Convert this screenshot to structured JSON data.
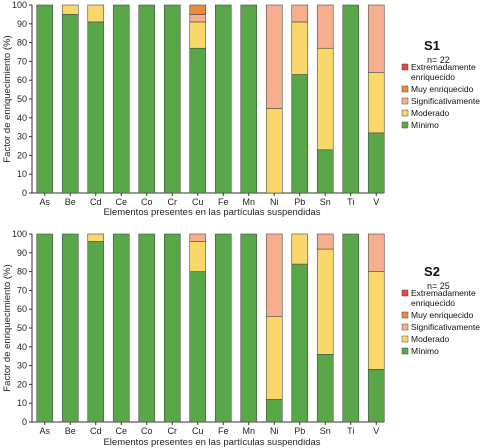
{
  "chart_data": [
    {
      "type": "bar",
      "stacked": true,
      "panel_title": "S1",
      "n_label": "n= 22",
      "ylabel": "Factor de enriquecimiento (%)",
      "xlabel": "Elementos presentes en las partículas suspendidas",
      "ylim": [
        0,
        100
      ],
      "yticks": [
        0,
        10,
        20,
        30,
        40,
        50,
        60,
        70,
        80,
        90,
        100
      ],
      "categories": [
        "As",
        "Be",
        "Cd",
        "Ce",
        "Co",
        "Cr",
        "Cu",
        "Fe",
        "Mn",
        "Ni",
        "Pb",
        "Sn",
        "Ti",
        "V"
      ],
      "series": [
        {
          "name": "Mínimo",
          "color": "#5aa74a",
          "values": [
            100,
            95,
            91,
            100,
            100,
            100,
            77,
            100,
            100,
            0,
            63,
            23,
            100,
            32
          ]
        },
        {
          "name": "Moderado",
          "color": "#f9d76a",
          "values": [
            0,
            5,
            9,
            0,
            0,
            0,
            14,
            0,
            0,
            45,
            28,
            54,
            0,
            32
          ]
        },
        {
          "name": "Significativamente",
          "color": "#f7ae8e",
          "values": [
            0,
            0,
            0,
            0,
            0,
            0,
            4,
            0,
            0,
            55,
            9,
            23,
            0,
            36
          ]
        },
        {
          "name": "Muy enriquecido",
          "color": "#ee8a3c",
          "values": [
            0,
            0,
            0,
            0,
            0,
            0,
            5,
            0,
            0,
            0,
            0,
            0,
            0,
            0
          ]
        },
        {
          "name": "Extremadamente enriquecido",
          "color": "#e8453c",
          "values": [
            0,
            0,
            0,
            0,
            0,
            0,
            0,
            0,
            0,
            0,
            0,
            0,
            0,
            0
          ]
        }
      ],
      "legend_position": "right",
      "grid": false
    },
    {
      "type": "bar",
      "stacked": true,
      "panel_title": "S2",
      "n_label": "n= 25",
      "ylabel": "Factor de enriquecimiento (%)",
      "xlabel": "Elementos presentes en las partículas suspendidas",
      "ylim": [
        0,
        100
      ],
      "yticks": [
        0,
        10,
        20,
        30,
        40,
        50,
        60,
        70,
        80,
        90,
        100
      ],
      "categories": [
        "As",
        "Be",
        "Cd",
        "Ce",
        "Co",
        "Cr",
        "Cu",
        "Fe",
        "Mn",
        "Ni",
        "Pb",
        "Sn",
        "Ti",
        "V"
      ],
      "series": [
        {
          "name": "Mínimo",
          "color": "#5aa74a",
          "values": [
            100,
            100,
            96,
            100,
            100,
            100,
            80,
            100,
            100,
            12,
            84,
            36,
            100,
            28
          ]
        },
        {
          "name": "Moderado",
          "color": "#f9d76a",
          "values": [
            0,
            0,
            4,
            0,
            0,
            0,
            16,
            0,
            0,
            44,
            16,
            56,
            0,
            52
          ]
        },
        {
          "name": "Significativamente",
          "color": "#f7ae8e",
          "values": [
            0,
            0,
            0,
            0,
            0,
            0,
            4,
            0,
            0,
            44,
            0,
            8,
            0,
            20
          ]
        },
        {
          "name": "Muy enriquecido",
          "color": "#ee8a3c",
          "values": [
            0,
            0,
            0,
            0,
            0,
            0,
            0,
            0,
            0,
            0,
            0,
            0,
            0,
            0
          ]
        },
        {
          "name": "Extremadamente enriquecido",
          "color": "#e8453c",
          "values": [
            0,
            0,
            0,
            0,
            0,
            0,
            0,
            0,
            0,
            0,
            0,
            0,
            0,
            0
          ]
        }
      ],
      "legend_position": "right",
      "grid": false
    }
  ],
  "legend_labels": {
    "extremadamente": [
      "Extremadamente",
      "enriquecido"
    ],
    "muy": "Muy enriquecido",
    "significativamente": "Significativamente",
    "moderado": "Moderado",
    "minimo": "Mínimo"
  }
}
